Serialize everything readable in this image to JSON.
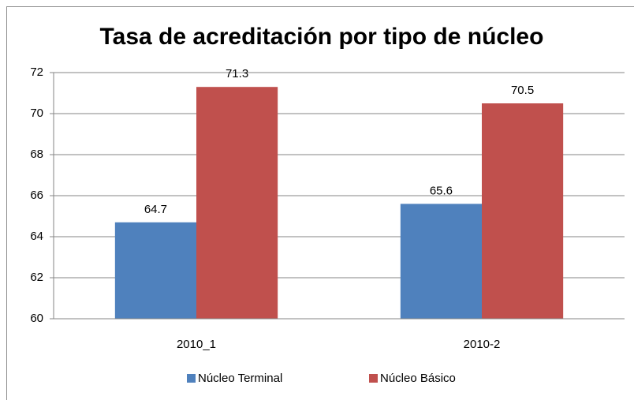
{
  "chart_data": {
    "type": "bar",
    "title": "Tasa de acreditación por tipo de núcleo",
    "categories": [
      "2010_1",
      "2010-2"
    ],
    "series": [
      {
        "name": "Núcleo Terminal",
        "color": "#4f81bd",
        "values": [
          64.7,
          65.6
        ]
      },
      {
        "name": "Núcleo Básico",
        "color": "#c0504d",
        "values": [
          71.3,
          70.5
        ]
      }
    ],
    "ylim": [
      60,
      72
    ],
    "yticks": [
      60,
      62,
      64,
      66,
      68,
      70,
      72
    ],
    "grid": true,
    "legend": "bottom"
  }
}
